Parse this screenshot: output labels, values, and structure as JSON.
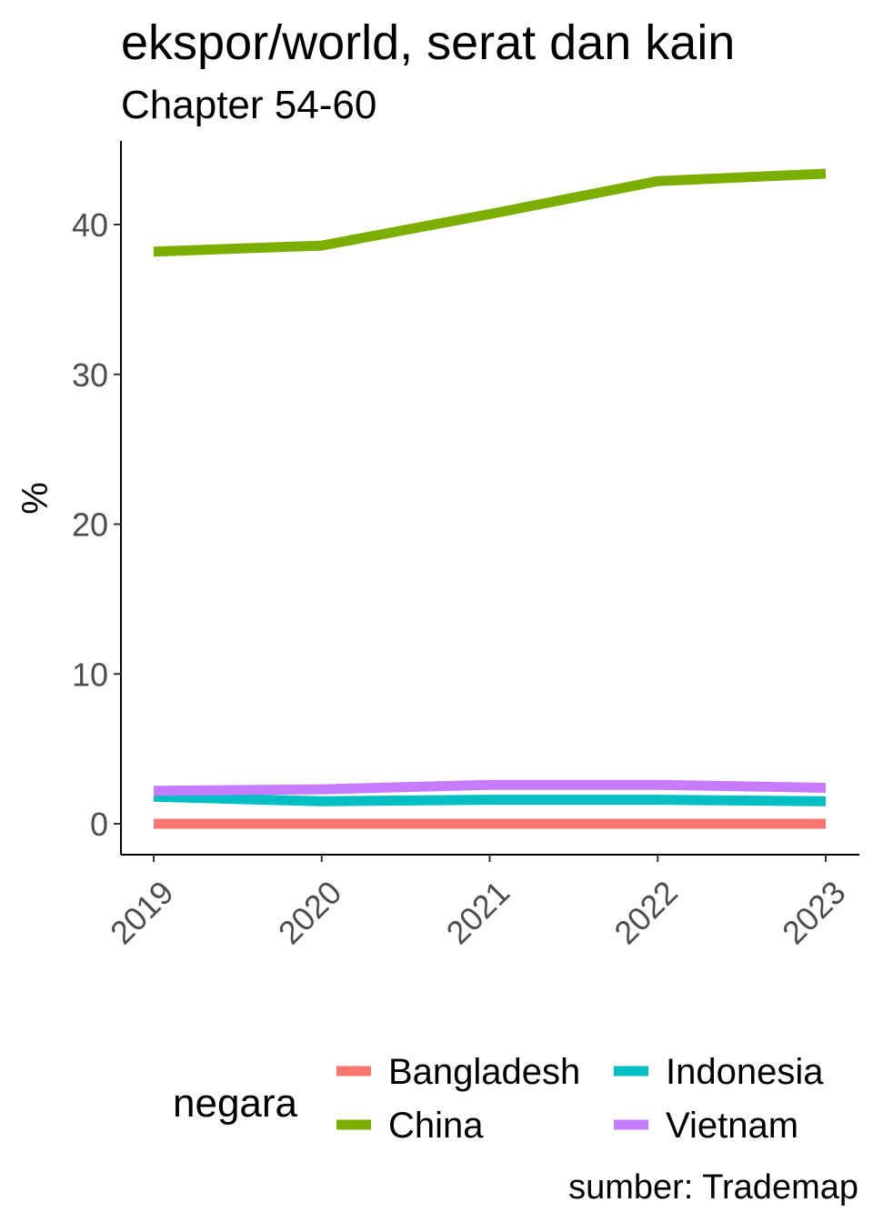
{
  "title": "ekspor/world, serat dan kain",
  "subtitle": "Chapter 54-60",
  "caption": "sumber: Trademap",
  "chart_data": {
    "type": "line",
    "title": "ekspor/world, serat dan kain",
    "subtitle": "Chapter 54-60",
    "xlabel": "",
    "ylabel": "%",
    "x": [
      "2019",
      "2020",
      "2021",
      "2022",
      "2023"
    ],
    "ylim": [
      -2,
      45.5
    ],
    "yticks": [
      0,
      10,
      20,
      30,
      40
    ],
    "grid": false,
    "legend_title": "negara",
    "legend_position": "bottom",
    "series": [
      {
        "name": "Bangladesh",
        "color": "#F8766D",
        "values": [
          0.0,
          0.0,
          0.0,
          0.0,
          0.0
        ]
      },
      {
        "name": "China",
        "color": "#7CAE00",
        "values": [
          38.2,
          38.6,
          40.7,
          42.9,
          43.4
        ]
      },
      {
        "name": "Indonesia",
        "color": "#00BFC4",
        "values": [
          1.8,
          1.5,
          1.6,
          1.6,
          1.5
        ]
      },
      {
        "name": "Vietnam",
        "color": "#C77CFF",
        "values": [
          2.2,
          2.3,
          2.6,
          2.6,
          2.4
        ]
      }
    ]
  }
}
